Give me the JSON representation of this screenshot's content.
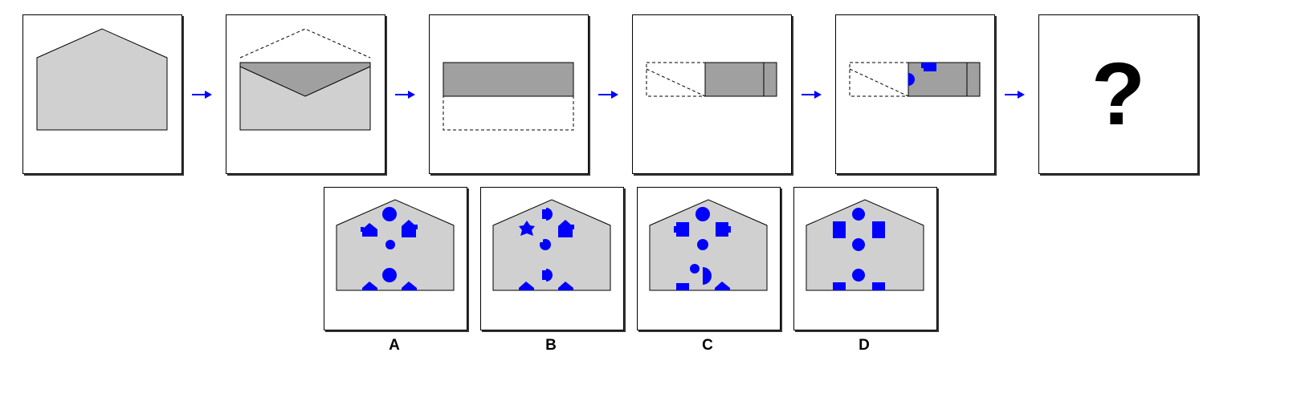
{
  "colors": {
    "paper": "#d0d0d0",
    "flap": "#a0a0a0",
    "hole": "#0000ff",
    "arrow": "#0000ff",
    "outline": "#000000"
  },
  "sequence": {
    "step_count": 5,
    "arrow_icon": "right-arrow-icon",
    "unknown_symbol": "?"
  },
  "options": [
    {
      "label": "A"
    },
    {
      "label": "B"
    },
    {
      "label": "C"
    },
    {
      "label": "D"
    }
  ]
}
